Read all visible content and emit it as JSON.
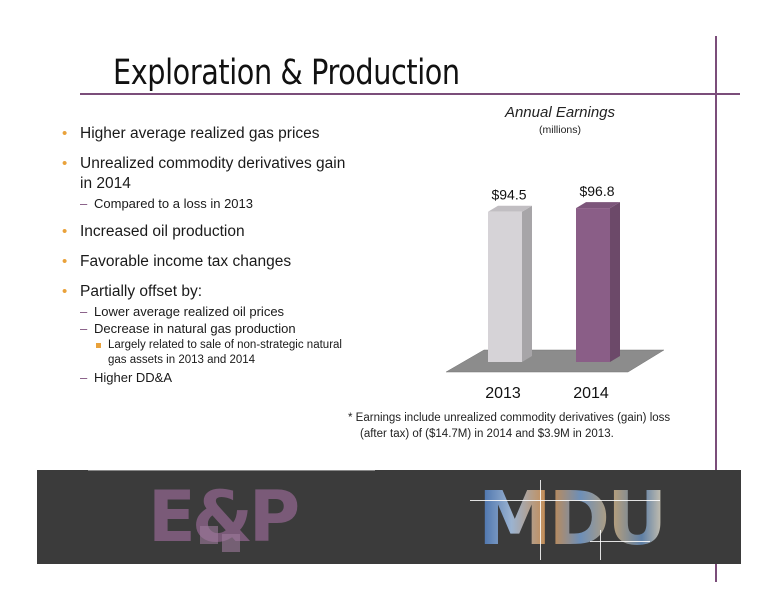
{
  "slide": {
    "title": "Exploration & Production",
    "bullets": [
      {
        "text": "Higher average realized gas prices"
      },
      {
        "text": "Unrealized commodity derivatives gain in 2014",
        "sub": [
          "Compared to a loss in 2013"
        ]
      },
      {
        "text": "Increased oil production"
      },
      {
        "text": "Favorable income tax changes"
      },
      {
        "text": "Partially offset by:",
        "sub": [
          "Lower average realized oil prices",
          "Decrease in natural gas production"
        ],
        "subsub": [
          "Largely related to sale of non-strategic natural gas assets in 2013 and 2014"
        ],
        "sub_after": [
          "Higher DD&A"
        ]
      }
    ],
    "footnote_line1": "* Earnings include unrealized commodity derivatives (gain) loss",
    "footnote_line2": "(after tax) of ($14.7M) in 2014 and $3.9M in 2013.",
    "logo_left": "E&P",
    "logo_right": "MDU"
  },
  "chart_data": {
    "type": "bar",
    "title": "Annual Earnings",
    "subtitle": "(millions)",
    "categories": [
      "2013",
      "2014"
    ],
    "values": [
      94.5,
      96.8
    ],
    "labels": [
      "$94.5",
      "$96.8"
    ],
    "colors": [
      "#d6d3d7",
      "#8a5e87"
    ],
    "ylim": [
      0,
      100
    ],
    "grid": false,
    "legend": "none"
  }
}
